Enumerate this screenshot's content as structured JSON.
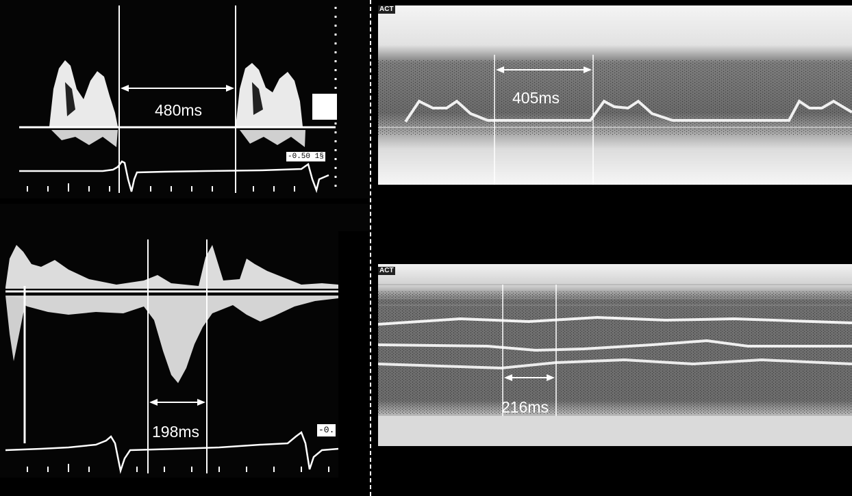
{
  "measurements": {
    "top_left": "480ms",
    "bottom_left": "198ms",
    "top_right": "405ms",
    "bottom_right": "216ms"
  },
  "tags": {
    "top_left_scale": "-0.50 1§",
    "bottom_left_scale": "-0."
  },
  "corner_labels": {
    "top_right": "ACT",
    "bottom_right": "ACT"
  },
  "colors": {
    "background": "#000000",
    "trace": "#ffffff",
    "mmode_light": "#d8d8d8",
    "mmode_dark": "#6a6a6a"
  }
}
